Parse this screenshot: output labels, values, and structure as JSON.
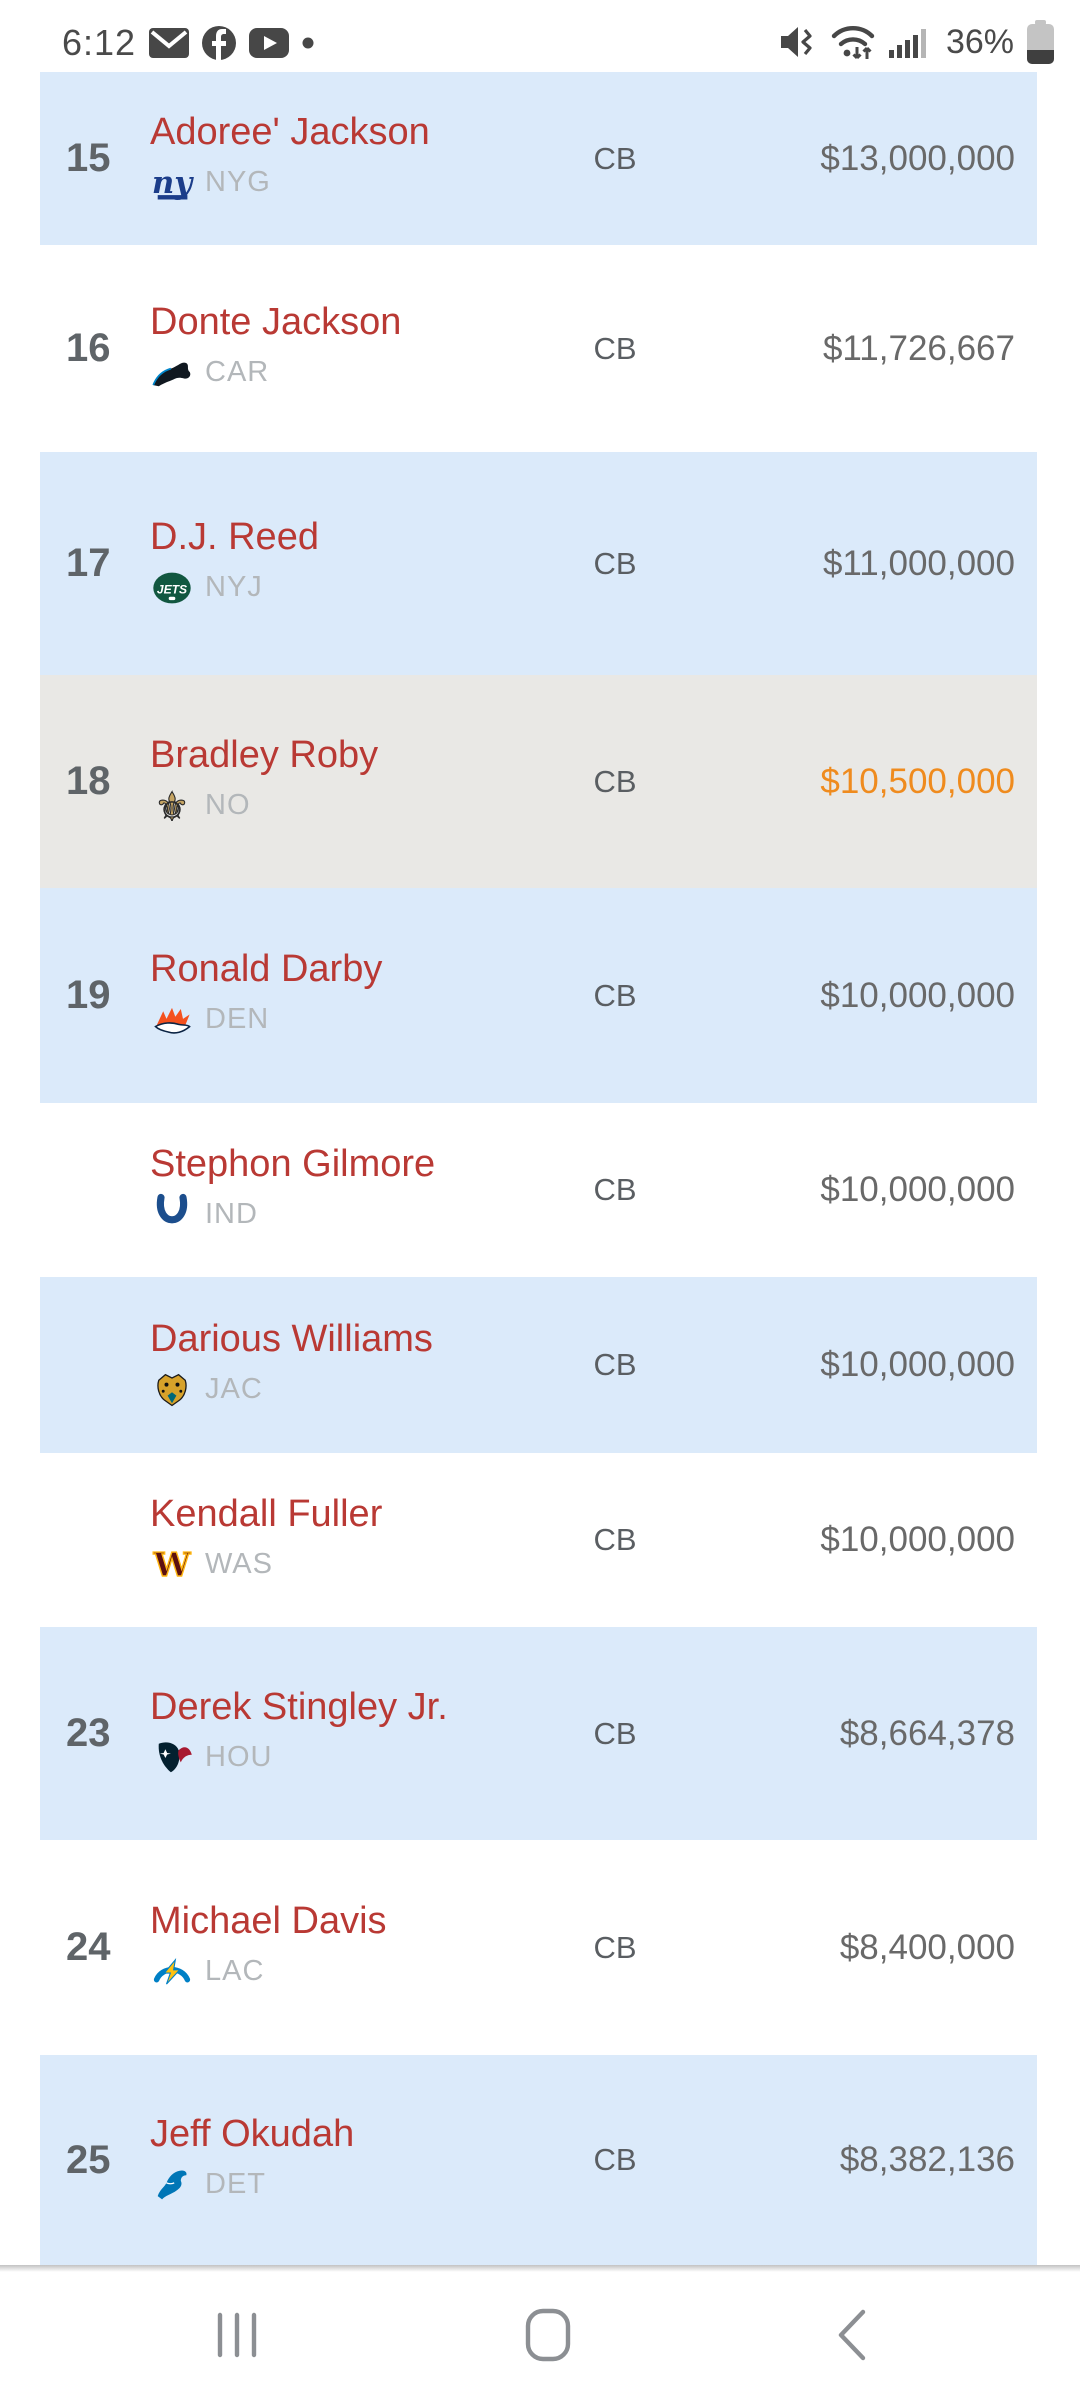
{
  "status_bar": {
    "time": "6:12",
    "battery_percent": "36%",
    "notification_icons": [
      "email-icon",
      "facebook-icon",
      "youtube-icon",
      "notification-dot-icon"
    ],
    "system_icons": [
      "mute-vibrate-icon",
      "wifi-icon",
      "signal-strength-icon",
      "battery-icon"
    ]
  },
  "table": {
    "rows": [
      {
        "rank": "15",
        "name": "Adoree' Jackson",
        "team_abbr": "NYG",
        "team_logo": "giants",
        "position": "CB",
        "salary": "$13,000,000",
        "row_style": "blue",
        "salary_highlight": false
      },
      {
        "rank": "16",
        "name": "Donte Jackson",
        "team_abbr": "CAR",
        "team_logo": "panthers",
        "position": "CB",
        "salary": "$11,726,667",
        "row_style": "white",
        "salary_highlight": false
      },
      {
        "rank": "17",
        "name": "D.J. Reed",
        "team_abbr": "NYJ",
        "team_logo": "jets",
        "position": "CB",
        "salary": "$11,000,000",
        "row_style": "blue",
        "salary_highlight": false
      },
      {
        "rank": "18",
        "name": "Bradley Roby",
        "team_abbr": "NO",
        "team_logo": "saints",
        "position": "CB",
        "salary": "$10,500,000",
        "row_style": "gray",
        "salary_highlight": true
      },
      {
        "rank": "19",
        "name": "Ronald Darby",
        "team_abbr": "DEN",
        "team_logo": "broncos",
        "position": "CB",
        "salary": "$10,000,000",
        "row_style": "blue",
        "salary_highlight": false
      },
      {
        "rank": "",
        "name": "Stephon Gilmore",
        "team_abbr": "IND",
        "team_logo": "colts",
        "position": "CB",
        "salary": "$10,000,000",
        "row_style": "white",
        "salary_highlight": false
      },
      {
        "rank": "",
        "name": "Darious Williams",
        "team_abbr": "JAC",
        "team_logo": "jaguars",
        "position": "CB",
        "salary": "$10,000,000",
        "row_style": "blue",
        "salary_highlight": false
      },
      {
        "rank": "",
        "name": "Kendall Fuller",
        "team_abbr": "WAS",
        "team_logo": "commanders",
        "position": "CB",
        "salary": "$10,000,000",
        "row_style": "white",
        "salary_highlight": false
      },
      {
        "rank": "23",
        "name": "Derek Stingley Jr.",
        "team_abbr": "HOU",
        "team_logo": "texans",
        "position": "CB",
        "salary": "$8,664,378",
        "row_style": "blue",
        "salary_highlight": false
      },
      {
        "rank": "24",
        "name": "Michael Davis",
        "team_abbr": "LAC",
        "team_logo": "chargers",
        "position": "CB",
        "salary": "$8,400,000",
        "row_style": "white",
        "salary_highlight": false
      },
      {
        "rank": "25",
        "name": "Jeff Okudah",
        "team_abbr": "DET",
        "team_logo": "lions",
        "position": "CB",
        "salary": "$8,382,136",
        "row_style": "blue",
        "salary_highlight": false
      }
    ]
  },
  "nav_bar": {
    "icons": [
      "recents-icon",
      "home-icon",
      "back-icon"
    ]
  },
  "colors": {
    "row_blue": "#dbeafa",
    "row_gray": "#e9e8e5",
    "player_name_red": "#b93934",
    "salary_highlight_orange": "#ef8b1e",
    "text_gray": "#696969"
  }
}
